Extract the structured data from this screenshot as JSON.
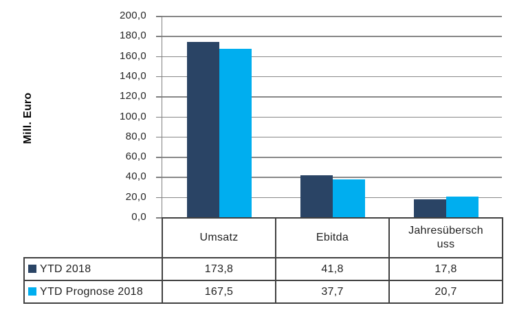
{
  "chart_data": {
    "type": "bar",
    "title": "",
    "ylabel": "Mill. Euro",
    "xlabel": "",
    "ylim": [
      0,
      200
    ],
    "ytick_step": 20,
    "ytick_labels": [
      "200,0",
      "180,0",
      "160,0",
      "140,0",
      "120,0",
      "100,0",
      "80,0",
      "60,0",
      "40,0",
      "20,0",
      "0,0"
    ],
    "grid": true,
    "legend_position": "data-table-left",
    "categories": [
      "Umsatz",
      "Ebitda",
      "Jahresüberschuss"
    ],
    "categories_display": [
      "Umsatz",
      "Ebitda",
      "Jahresübersch\nuss"
    ],
    "series": [
      {
        "name": "YTD 2018",
        "color": "#2A4465",
        "values": [
          173.8,
          41.8,
          17.8
        ],
        "display": [
          "173,8",
          "41,8",
          "17,8"
        ]
      },
      {
        "name": "YTD Prognose 2018",
        "color": "#00AEEF",
        "values": [
          167.5,
          37.7,
          20.7
        ],
        "display": [
          "167,5",
          "37,7",
          "20,7"
        ]
      }
    ]
  }
}
